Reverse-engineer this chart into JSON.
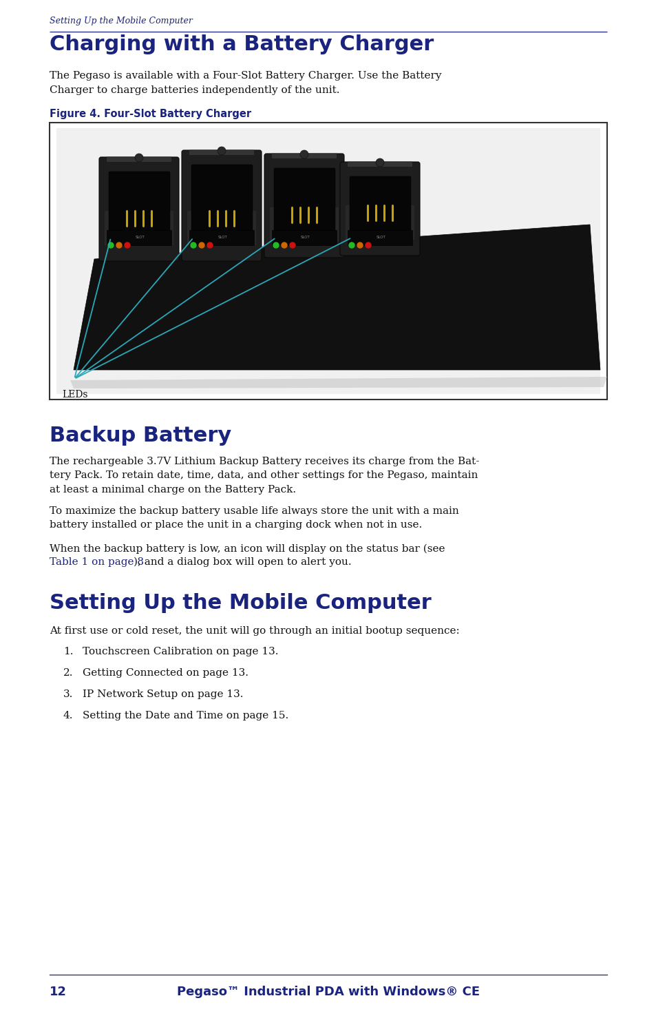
{
  "page_bg": "#ffffff",
  "dark_blue": "#1a237e",
  "link_blue": "#1a237e",
  "teal": "#2aa8b8",
  "text_color": "#111111",
  "header_text": "Setting Up the Mobile Computer",
  "section1_title": "Charging with a Battery Charger",
  "section1_body": "The Pegaso is available with a Four-Slot Battery Charger. Use the Battery\nCharger to charge batteries independently of the unit.",
  "figure_caption": "Figure 4. Four-Slot Battery Charger",
  "led_label": "LEDs",
  "section2_title": "Backup Battery",
  "section2_body1": "The rechargeable 3.7V Lithium Backup Battery receives its charge from the Bat-\ntery Pack. To retain date, time, data, and other settings for the Pegaso, maintain\nat least a minimal charge on the Battery Pack.",
  "section2_body2": "To maximize the backup battery usable life always store the unit with a main\nbattery installed or place the unit in a charging dock when not in use.",
  "section2_body3_pre": "When the backup battery is low, an icon will display on the status bar (see",
  "section2_body3_link": "Table 1 on page 8",
  "section2_body3_post": "), and a dialog box will open to alert you.",
  "section3_title": "Setting Up the Mobile Computer",
  "section3_intro": "At first use or cold reset, the unit will go through an initial bootup sequence:",
  "list_items": [
    "Touchscreen Calibration on page 13.",
    "Getting Connected on page 13.",
    "IP Network Setup on page 13.",
    "Setting the Date and Time on page 15."
  ],
  "footer_page": "12",
  "footer_center": "Pegaso™ Industrial PDA with Windows® CE"
}
